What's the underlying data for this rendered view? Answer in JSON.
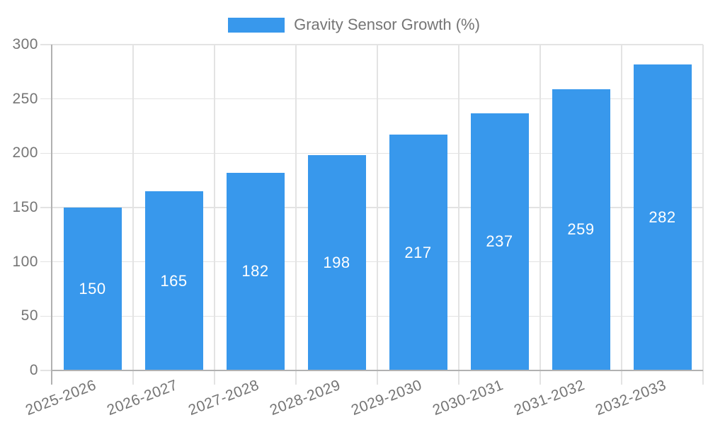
{
  "chart_data": {
    "type": "bar",
    "title": "",
    "legend_label": "Gravity Sensor Growth (%)",
    "legend_position": "top",
    "categories": [
      "2025-2026",
      "2026-2027",
      "2027-2028",
      "2028-2029",
      "2029-2030",
      "2030-2031",
      "2031-2032",
      "2032-2033"
    ],
    "values": [
      150,
      165,
      182,
      198,
      217,
      237,
      259,
      282
    ],
    "xlabel": "",
    "ylabel": "",
    "ylim": [
      0,
      300
    ],
    "yticks": [
      0,
      50,
      100,
      150,
      200,
      250,
      300
    ],
    "grid": true,
    "value_labels_inside_bars": true,
    "x_label_rotation_deg": -21,
    "colors": {
      "bar": "#3898ec",
      "value_label": "#ffffff",
      "axis_text": "#757575",
      "grid_line": "#e3e3e3",
      "axis_line": "#b1b1b1",
      "background": "#ffffff"
    }
  }
}
